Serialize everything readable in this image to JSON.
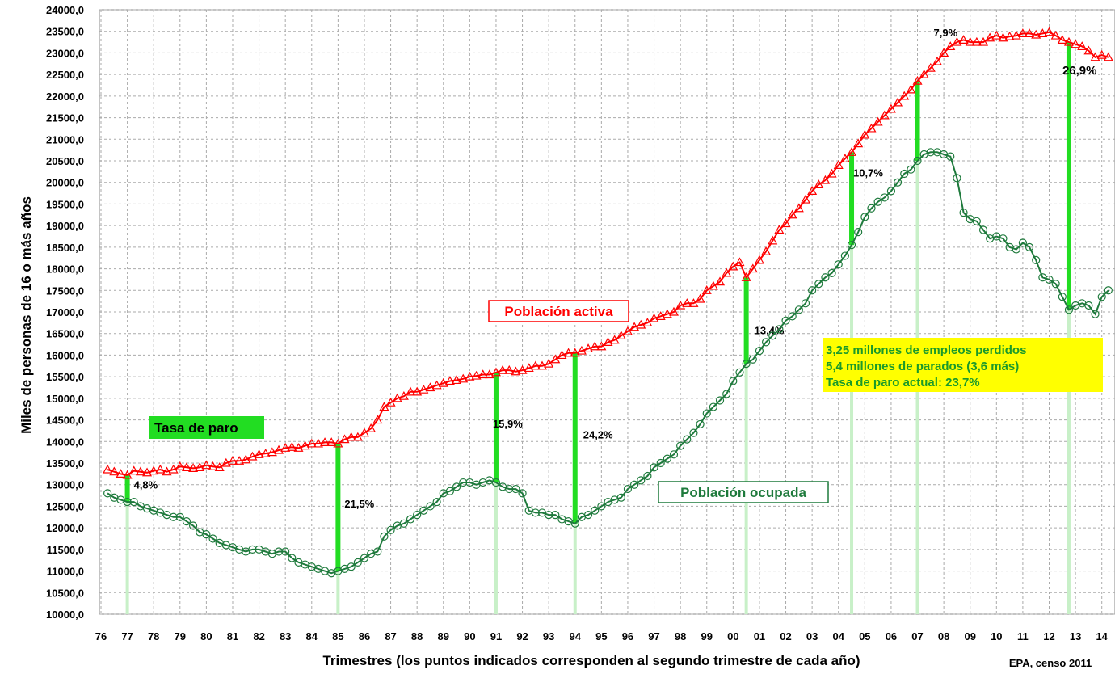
{
  "chart_data": {
    "type": "line",
    "y_axis_title": "Miles de personas de 16 o más años",
    "x_axis_title": "Trimestres (los puntos indicados corresponden al segundo trimestre de cada año)",
    "source": "EPA, censo 2011",
    "unemployment_label": "Tasa de paro",
    "note": [
      "3,25 millones de empleos perdidos",
      "5,4 millones de parados (3,6 más)",
      "Tasa de paro actual: 23,7%"
    ],
    "xlim": [
      1976,
      2014.5
    ],
    "ylim": [
      10000,
      24000
    ],
    "grid": true,
    "xticks": [
      {
        "value": 1976,
        "label": "76"
      },
      {
        "value": 1977,
        "label": "77"
      },
      {
        "value": 1978,
        "label": "78"
      },
      {
        "value": 1979,
        "label": "79"
      },
      {
        "value": 1980,
        "label": "80"
      },
      {
        "value": 1981,
        "label": "81"
      },
      {
        "value": 1982,
        "label": "82"
      },
      {
        "value": 1983,
        "label": "83"
      },
      {
        "value": 1984,
        "label": "84"
      },
      {
        "value": 1985,
        "label": "85"
      },
      {
        "value": 1986,
        "label": "86"
      },
      {
        "value": 1987,
        "label": "87"
      },
      {
        "value": 1988,
        "label": "88"
      },
      {
        "value": 1989,
        "label": "89"
      },
      {
        "value": 1990,
        "label": "90"
      },
      {
        "value": 1991,
        "label": "91"
      },
      {
        "value": 1992,
        "label": "92"
      },
      {
        "value": 1993,
        "label": "93"
      },
      {
        "value": 1994,
        "label": "94"
      },
      {
        "value": 1995,
        "label": "95"
      },
      {
        "value": 1996,
        "label": "96"
      },
      {
        "value": 1997,
        "label": "97"
      },
      {
        "value": 1998,
        "label": "98"
      },
      {
        "value": 1999,
        "label": "99"
      },
      {
        "value": 2000,
        "label": "00"
      },
      {
        "value": 2001,
        "label": "01"
      },
      {
        "value": 2002,
        "label": "02"
      },
      {
        "value": 2003,
        "label": "03"
      },
      {
        "value": 2004,
        "label": "04"
      },
      {
        "value": 2005,
        "label": "05"
      },
      {
        "value": 2006,
        "label": "06"
      },
      {
        "value": 2007,
        "label": "07"
      },
      {
        "value": 2008,
        "label": "08"
      },
      {
        "value": 2009,
        "label": "09"
      },
      {
        "value": 2010,
        "label": "10"
      },
      {
        "value": 2011,
        "label": "11"
      },
      {
        "value": 2012,
        "label": "12"
      },
      {
        "value": 2013,
        "label": "13"
      },
      {
        "value": 2014,
        "label": "14"
      }
    ],
    "yticks": [
      {
        "value": 10000,
        "label": "10000,0"
      },
      {
        "value": 10500,
        "label": "10500,0"
      },
      {
        "value": 11000,
        "label": "11000,0"
      },
      {
        "value": 11500,
        "label": "11500,0"
      },
      {
        "value": 12000,
        "label": "12000,0"
      },
      {
        "value": 12500,
        "label": "12500,0"
      },
      {
        "value": 13000,
        "label": "13000,0"
      },
      {
        "value": 13500,
        "label": "13500,0"
      },
      {
        "value": 14000,
        "label": "14000,0"
      },
      {
        "value": 14500,
        "label": "14500,0"
      },
      {
        "value": 15000,
        "label": "15000,0"
      },
      {
        "value": 15500,
        "label": "15500,0"
      },
      {
        "value": 16000,
        "label": "16000,0"
      },
      {
        "value": 16500,
        "label": "16500,0"
      },
      {
        "value": 17000,
        "label": "17000,0"
      },
      {
        "value": 17500,
        "label": "17500,0"
      },
      {
        "value": 18000,
        "label": "18000,0"
      },
      {
        "value": 18500,
        "label": "18500,0"
      },
      {
        "value": 19000,
        "label": "19000,0"
      },
      {
        "value": 19500,
        "label": "19500,0"
      },
      {
        "value": 20000,
        "label": "20000,0"
      },
      {
        "value": 20500,
        "label": "20500,0"
      },
      {
        "value": 21000,
        "label": "21000,0"
      },
      {
        "value": 21500,
        "label": "21500,0"
      },
      {
        "value": 22000,
        "label": "22000,0"
      },
      {
        "value": 22500,
        "label": "22500,0"
      },
      {
        "value": 23000,
        "label": "23000,0"
      },
      {
        "value": 23500,
        "label": "23500,0"
      },
      {
        "value": 24000,
        "label": "24000,0"
      }
    ],
    "x": [
      1976.25,
      1976.5,
      1976.75,
      1977,
      1977.25,
      1977.5,
      1977.75,
      1978,
      1978.25,
      1978.5,
      1978.75,
      1979,
      1979.25,
      1979.5,
      1979.75,
      1980,
      1980.25,
      1980.5,
      1980.75,
      1981,
      1981.25,
      1981.5,
      1981.75,
      1982,
      1982.25,
      1982.5,
      1982.75,
      1983,
      1983.25,
      1983.5,
      1983.75,
      1984,
      1984.25,
      1984.5,
      1984.75,
      1985,
      1985.25,
      1985.5,
      1985.75,
      1986,
      1986.25,
      1986.5,
      1986.75,
      1987,
      1987.25,
      1987.5,
      1987.75,
      1988,
      1988.25,
      1988.5,
      1988.75,
      1989,
      1989.25,
      1989.5,
      1989.75,
      1990,
      1990.25,
      1990.5,
      1990.75,
      1991,
      1991.25,
      1991.5,
      1991.75,
      1992,
      1992.25,
      1992.5,
      1992.75,
      1993,
      1993.25,
      1993.5,
      1993.75,
      1994,
      1994.25,
      1994.5,
      1994.75,
      1995,
      1995.25,
      1995.5,
      1995.75,
      1996,
      1996.25,
      1996.5,
      1996.75,
      1997,
      1997.25,
      1997.5,
      1997.75,
      1998,
      1998.25,
      1998.5,
      1998.75,
      1999,
      1999.25,
      1999.5,
      1999.75,
      2000,
      2000.25,
      2000.5,
      2000.75,
      2001,
      2001.25,
      2001.5,
      2001.75,
      2002,
      2002.25,
      2002.5,
      2002.75,
      2003,
      2003.25,
      2003.5,
      2003.75,
      2004,
      2004.25,
      2004.5,
      2004.75,
      2005,
      2005.25,
      2005.5,
      2005.75,
      2006,
      2006.25,
      2006.5,
      2006.75,
      2007,
      2007.25,
      2007.5,
      2007.75,
      2008,
      2008.25,
      2008.5,
      2008.75,
      2009,
      2009.25,
      2009.5,
      2009.75,
      2010,
      2010.25,
      2010.5,
      2010.75,
      2011,
      2011.25,
      2011.5,
      2011.75,
      2012,
      2012.25,
      2012.5,
      2012.75,
      2013,
      2013.25,
      2013.5,
      2013.75,
      2014,
      2014.25
    ],
    "series": [
      {
        "name": "Población activa",
        "color": "#ff0000",
        "marker": "triangle",
        "values": [
          13350,
          13300,
          13250,
          13220,
          13320,
          13300,
          13280,
          13320,
          13350,
          13300,
          13350,
          13420,
          13400,
          13380,
          13400,
          13450,
          13420,
          13400,
          13500,
          13550,
          13550,
          13580,
          13650,
          13700,
          13720,
          13750,
          13800,
          13850,
          13870,
          13850,
          13900,
          13950,
          13950,
          13980,
          13980,
          13950,
          14050,
          14100,
          14100,
          14200,
          14300,
          14500,
          14800,
          14900,
          15000,
          15050,
          15150,
          15150,
          15200,
          15250,
          15300,
          15350,
          15400,
          15420,
          15450,
          15500,
          15520,
          15550,
          15550,
          15600,
          15650,
          15650,
          15620,
          15650,
          15700,
          15750,
          15750,
          15800,
          15900,
          16000,
          16050,
          16050,
          16100,
          16150,
          16200,
          16200,
          16300,
          16350,
          16450,
          16550,
          16650,
          16700,
          16750,
          16850,
          16900,
          16950,
          17000,
          17150,
          17200,
          17200,
          17300,
          17500,
          17600,
          17700,
          17900,
          18050,
          18150,
          17800,
          18000,
          18200,
          18400,
          18650,
          18900,
          19050,
          19250,
          19400,
          19600,
          19800,
          19950,
          20050,
          20200,
          20400,
          20550,
          20700,
          20900,
          21100,
          21250,
          21400,
          21550,
          21700,
          21850,
          22000,
          22150,
          22350,
          22500,
          22650,
          22800,
          23000,
          23150,
          23250,
          23300,
          23250,
          23250,
          23250,
          23350,
          23400,
          23350,
          23380,
          23400,
          23450,
          23450,
          23420,
          23450,
          23480,
          23400,
          23300,
          23250,
          23200,
          23150,
          23050,
          22900,
          22950,
          22900
        ]
      },
      {
        "name": "Población ocupada",
        "color": "#1e7a3c",
        "marker": "circle",
        "values": [
          12800,
          12700,
          12650,
          12600,
          12600,
          12500,
          12450,
          12400,
          12350,
          12300,
          12250,
          12250,
          12150,
          12050,
          11900,
          11850,
          11750,
          11650,
          11600,
          11550,
          11500,
          11450,
          11500,
          11500,
          11450,
          11400,
          11450,
          11450,
          11300,
          11200,
          11150,
          11100,
          11050,
          11000,
          10950,
          11000,
          11050,
          11100,
          11200,
          11300,
          11400,
          11450,
          11800,
          11950,
          12050,
          12100,
          12200,
          12300,
          12400,
          12500,
          12600,
          12800,
          12850,
          12950,
          13050,
          13050,
          13000,
          13050,
          13100,
          13050,
          12950,
          12900,
          12900,
          12800,
          12400,
          12350,
          12350,
          12300,
          12300,
          12200,
          12150,
          12100,
          12250,
          12300,
          12400,
          12500,
          12600,
          12650,
          12700,
          12900,
          13000,
          13100,
          13200,
          13400,
          13500,
          13600,
          13700,
          13900,
          14050,
          14200,
          14400,
          14650,
          14800,
          14950,
          15100,
          15400,
          15600,
          15800,
          15900,
          16100,
          16300,
          16450,
          16600,
          16800,
          16900,
          17050,
          17200,
          17500,
          17650,
          17800,
          17900,
          18100,
          18300,
          18550,
          18850,
          19200,
          19400,
          19550,
          19650,
          19800,
          20000,
          20200,
          20300,
          20500,
          20650,
          20700,
          20700,
          20650,
          20600,
          20100,
          19300,
          19150,
          19100,
          18900,
          18700,
          18750,
          18700,
          18500,
          18450,
          18600,
          18500,
          18200,
          17800,
          17750,
          17650,
          17350,
          17050,
          17150,
          17200,
          17150,
          16950,
          17350,
          17500
        ]
      }
    ],
    "unemployment_rates": [
      {
        "x": 1977,
        "value": 4.8,
        "label": "4,8%"
      },
      {
        "x": 1985,
        "value": 21.5,
        "label": "21,5%"
      },
      {
        "x": 1991,
        "value": 15.9,
        "label": "15,9%"
      },
      {
        "x": 1994,
        "value": 24.2,
        "label": "24,2%"
      },
      {
        "x": 2000.5,
        "value": 13.4,
        "label": "13,4%"
      },
      {
        "x": 2004.5,
        "value": 10.7,
        "label": "10,7%"
      },
      {
        "x": 2007,
        "value": 7.9,
        "label": "7,9%"
      },
      {
        "x": 2012.75,
        "value": 26.9,
        "label": "26,9%"
      }
    ]
  }
}
